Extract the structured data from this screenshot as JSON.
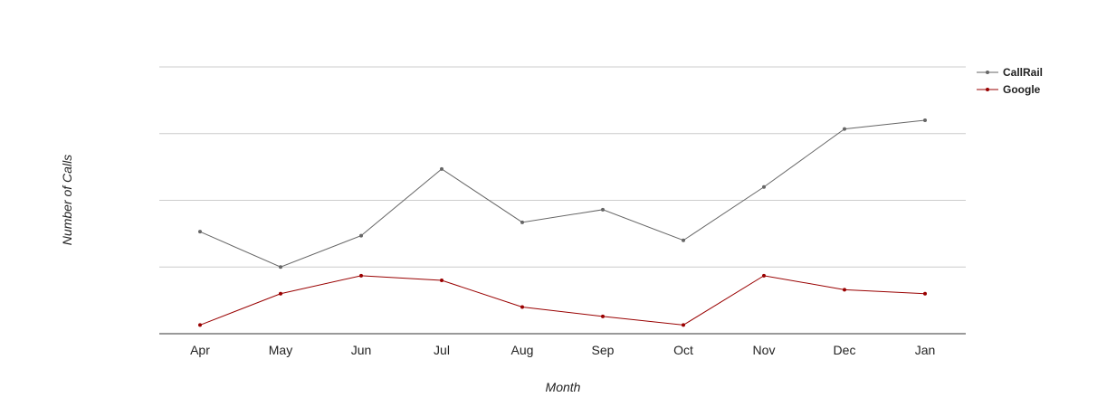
{
  "chart_data": {
    "type": "line",
    "title": "",
    "xlabel": "Month",
    "ylabel": "Number of Calls",
    "categories": [
      "Apr",
      "May",
      "Jun",
      "Jul",
      "Aug",
      "Sep",
      "Oct",
      "Nov",
      "Dec",
      "Jan"
    ],
    "ylim": [
      0,
      4
    ],
    "grid": true,
    "legend_position": "top-right",
    "series": [
      {
        "name": "CallRail",
        "color": "#666666",
        "values": [
          1.53,
          1.0,
          1.47,
          2.47,
          1.67,
          1.86,
          1.4,
          2.2,
          3.07,
          3.2
        ]
      },
      {
        "name": "Google",
        "color": "#990000",
        "values": [
          0.13,
          0.6,
          0.87,
          0.8,
          0.4,
          0.26,
          0.13,
          0.87,
          0.66,
          0.6
        ]
      }
    ]
  }
}
